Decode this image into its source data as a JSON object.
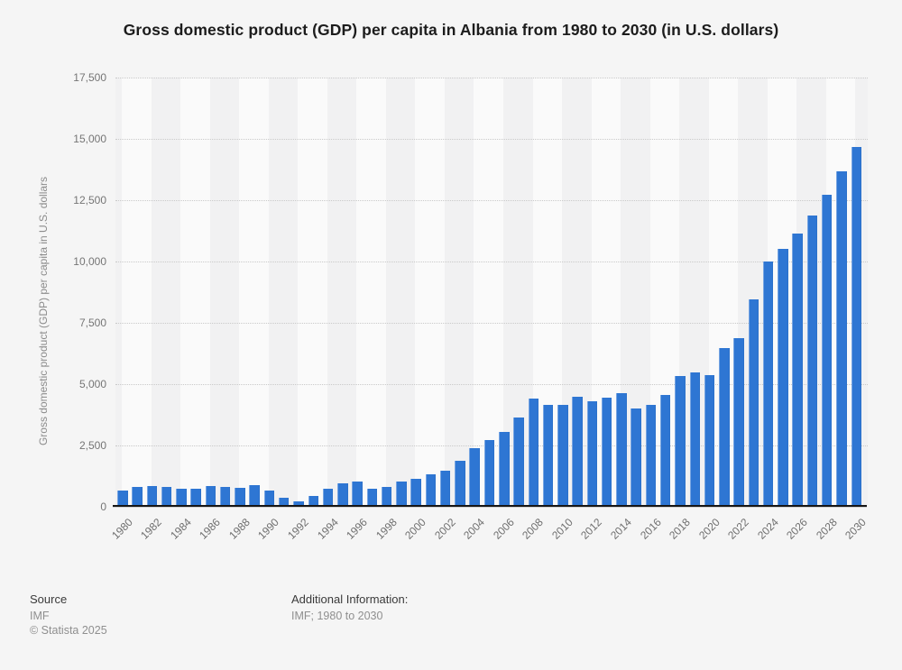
{
  "title": "Gross domestic product (GDP) per capita in Albania from 1980 to 2030 (in U.S. dollars)",
  "chart_data": {
    "type": "bar",
    "title": "Gross domestic product (GDP) per capita in Albania from 1980 to 2030 (in U.S. dollars)",
    "xlabel": "",
    "ylabel": "Gross domestic product (GDP) per capita in U.S. dollars",
    "ylim": [
      0,
      17500
    ],
    "ytick_interval": 2500,
    "y_tick_labels": [
      "0",
      "2,500",
      "5,000",
      "7,500",
      "10,000",
      "12,500",
      "15,000",
      "17,500"
    ],
    "x_tick_labels": [
      "1980",
      "1982",
      "1984",
      "1986",
      "1988",
      "1990",
      "1992",
      "1994",
      "1996",
      "1998",
      "2000",
      "2002",
      "2004",
      "2006",
      "2008",
      "2010",
      "2012",
      "2014",
      "2016",
      "2018",
      "2020",
      "2022",
      "2024",
      "2026",
      "2028",
      "2030"
    ],
    "grid": "horizontal-dotted",
    "legend": "none",
    "categories": [
      "1980",
      "1981",
      "1982",
      "1983",
      "1984",
      "1985",
      "1986",
      "1987",
      "1988",
      "1989",
      "1990",
      "1991",
      "1992",
      "1993",
      "1994",
      "1995",
      "1996",
      "1997",
      "1998",
      "1999",
      "2000",
      "2001",
      "2002",
      "2003",
      "2004",
      "2005",
      "2006",
      "2007",
      "2008",
      "2009",
      "2010",
      "2011",
      "2012",
      "2013",
      "2014",
      "2015",
      "2016",
      "2017",
      "2018",
      "2019",
      "2020",
      "2021",
      "2022",
      "2023",
      "2024",
      "2025",
      "2026",
      "2027",
      "2028",
      "2029",
      "2030"
    ],
    "values": [
      680,
      810,
      830,
      810,
      735,
      750,
      865,
      810,
      775,
      870,
      670,
      385,
      240,
      430,
      720,
      970,
      1015,
      720,
      820,
      1020,
      1130,
      1310,
      1480,
      1860,
      2400,
      2710,
      3040,
      3630,
      4415,
      4155,
      4145,
      4475,
      4305,
      4450,
      4630,
      4000,
      4145,
      4575,
      5350,
      5470,
      5375,
      6455,
      6870,
      8475,
      9985,
      10500,
      11140,
      11875,
      12730,
      13665,
      14670
    ]
  },
  "footer": {
    "source_label": "Source",
    "source_value": "IMF",
    "copyright": "© Statista 2025",
    "additional_info_label": "Additional Information:",
    "additional_info_value": "IMF; 1980 to 2030"
  },
  "colors": {
    "bar": "#2e76d3",
    "background": "#f5f5f5",
    "stripe_light": "#fafafa",
    "stripe_dark": "#f1f1f2",
    "gridline": "#c9c9c9",
    "axis_line": "#161616",
    "tick_label": "#757575",
    "title_text": "#1c1c1c"
  }
}
